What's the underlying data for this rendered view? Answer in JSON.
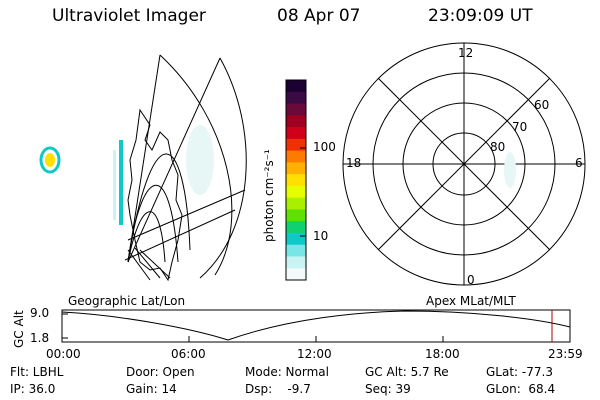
{
  "header": {
    "title": "Ultraviolet Imager",
    "date": "08 Apr 07",
    "time": "23:09:09 UT"
  },
  "colorbar": {
    "unit_label": "photon cm⁻²s⁻¹",
    "ticks": [
      "100",
      "10"
    ],
    "scale": "log",
    "colors": [
      "#1a0033",
      "#3b0a45",
      "#6a0a3a",
      "#a00020",
      "#d0001a",
      "#f03000",
      "#ff7a00",
      "#ffb000",
      "#ffe000",
      "#e6ff00",
      "#a8f000",
      "#5ee000",
      "#10d070",
      "#10c8c8",
      "#78e6e6",
      "#c8f4f4",
      "#f2fafa"
    ]
  },
  "polar": {
    "hour_labels": [
      "12",
      "18",
      "6",
      "0"
    ],
    "lat_labels": [
      "60",
      "70",
      "80"
    ]
  },
  "plot": {
    "ylabel": "GC Alt",
    "yticks": [
      "9.0",
      "1.8"
    ],
    "left_label": "Geographic Lat/Lon",
    "right_label": "Apex MLat/MLT",
    "xticks": [
      "00:00",
      "06:00",
      "12:00",
      "18:00",
      "23:59"
    ],
    "marker_color": "#b00000"
  },
  "info": {
    "filter": "Flt: LBHL",
    "ip": "IP: 36.0",
    "door": "Door: Open",
    "gain": "Gain: 14",
    "mode": "Mode: Normal",
    "dsp": "Dsp:    -9.7",
    "gc_alt": "GC Alt: 5.7 Re",
    "seq": "Seq: 39",
    "glat": "GLat: -77.3",
    "glon": "GLon:  68.4"
  }
}
